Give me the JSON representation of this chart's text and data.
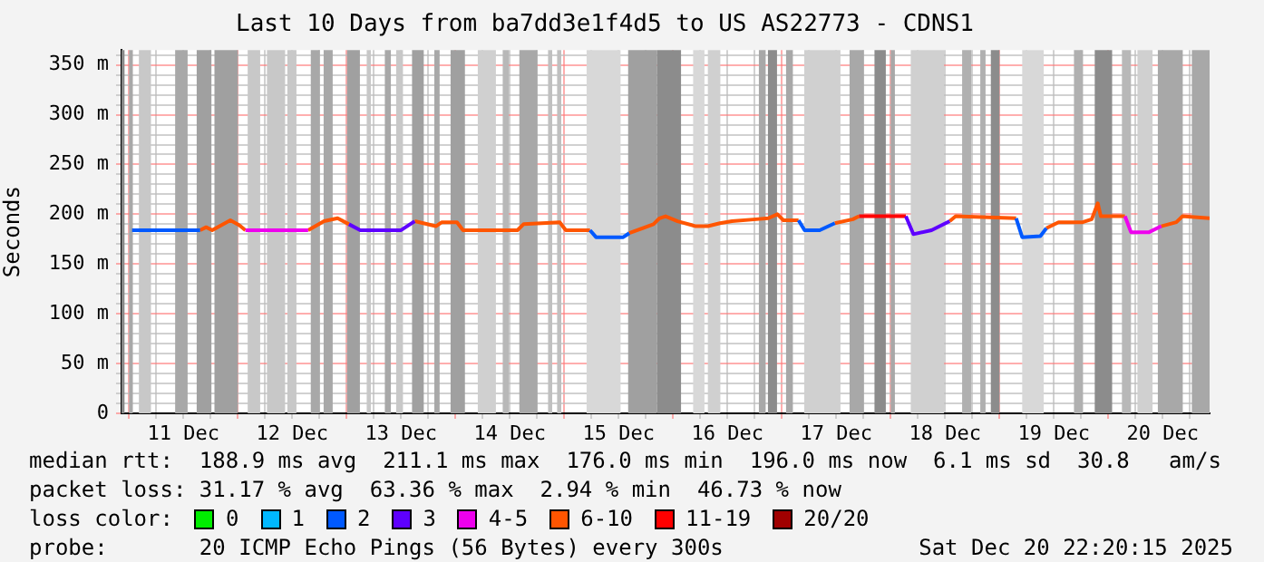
{
  "chart_data": {
    "type": "line",
    "title": "Last 10 Days from ba7dd3e1f4d5 to US AS22773 - CDNS1",
    "ylabel": "Seconds",
    "x": [
      "2025-12-11T00:40",
      "2025-12-11T05:00",
      "2025-12-11T10:00",
      "2025-12-11T15:40",
      "2025-12-11T17:00",
      "2025-12-11T18:20",
      "2025-12-11T20:20",
      "2025-12-11T22:20",
      "2025-12-12T00:20",
      "2025-12-12T01:40",
      "2025-12-12T02:30",
      "2025-12-12T14:30",
      "2025-12-12T15:30",
      "2025-12-12T19:00",
      "2025-12-12T22:00",
      "2025-12-13T00:30",
      "2025-12-13T03:00",
      "2025-12-13T12:00",
      "2025-12-13T15:00",
      "2025-12-13T19:40",
      "2025-12-13T21:00",
      "2025-12-14T00:20",
      "2025-12-14T01:40",
      "2025-12-14T13:40",
      "2025-12-14T15:00",
      "2025-12-14T23:00",
      "2025-12-15T00:20",
      "2025-12-15T05:40",
      "2025-12-15T07:00",
      "2025-12-15T13:00",
      "2025-12-15T14:20",
      "2025-12-15T19:40",
      "2025-12-15T21:00",
      "2025-12-15T22:20",
      "2025-12-16T01:00",
      "2025-12-16T05:00",
      "2025-12-16T07:40",
      "2025-12-16T10:20",
      "2025-12-16T13:00",
      "2025-12-16T18:20",
      "2025-12-16T21:00",
      "2025-12-16T23:00",
      "2025-12-17T00:20",
      "2025-12-17T03:40",
      "2025-12-17T05:00",
      "2025-12-17T08:20",
      "2025-12-17T11:40",
      "2025-12-17T15:40",
      "2025-12-17T17:00",
      "2025-12-17T20:00",
      "2025-12-18T02:30",
      "2025-12-18T03:20",
      "2025-12-18T05:00",
      "2025-12-18T09:00",
      "2025-12-18T13:00",
      "2025-12-18T14:20",
      "2025-12-19T03:40",
      "2025-12-19T05:00",
      "2025-12-19T09:00",
      "2025-12-19T10:20",
      "2025-12-19T13:00",
      "2025-12-19T18:20",
      "2025-12-19T20:20",
      "2025-12-19T21:40",
      "2025-12-19T22:20",
      "2025-12-20T03:40",
      "2025-12-20T05:00",
      "2025-12-20T09:00",
      "2025-12-20T11:40",
      "2025-12-20T15:00",
      "2025-12-20T16:20",
      "2025-12-20T22:20"
    ],
    "series": [
      {
        "name": "0",
        "color": "#00ee00",
        "values": [
          null,
          null,
          null,
          null,
          null,
          null,
          null,
          null,
          null,
          null,
          null,
          null,
          null,
          null,
          null,
          null,
          null,
          null,
          null,
          null,
          null,
          null,
          null,
          null,
          null,
          null,
          null,
          null,
          null,
          null,
          null,
          null,
          null,
          null,
          null,
          null,
          null,
          null,
          null,
          null,
          null,
          null,
          null,
          null,
          null,
          null,
          null,
          null,
          null,
          null,
          null,
          null,
          null,
          null,
          null,
          null,
          null,
          null,
          null,
          null,
          null,
          null,
          null,
          null,
          null,
          null,
          null,
          null,
          null,
          null,
          null,
          null
        ]
      },
      {
        "name": "1",
        "color": "#00b8ff",
        "values": [
          null,
          null,
          null,
          null,
          null,
          null,
          null,
          null,
          null,
          null,
          null,
          null,
          null,
          null,
          null,
          null,
          null,
          null,
          null,
          null,
          null,
          null,
          null,
          null,
          null,
          null,
          null,
          null,
          null,
          null,
          null,
          null,
          null,
          null,
          null,
          null,
          null,
          null,
          null,
          null,
          null,
          null,
          null,
          null,
          null,
          null,
          null,
          null,
          null,
          null,
          null,
          null,
          null,
          null,
          null,
          null,
          null,
          null,
          null,
          null,
          null,
          null,
          null,
          null,
          null,
          null,
          null,
          null,
          null,
          null,
          null,
          null
        ]
      },
      {
        "name": "2",
        "color": "#0059ff",
        "values": [
          184,
          184,
          184,
          184,
          null,
          null,
          null,
          null,
          null,
          null,
          null,
          null,
          null,
          null,
          null,
          null,
          null,
          null,
          null,
          null,
          null,
          null,
          null,
          null,
          null,
          null,
          null,
          184,
          177,
          177,
          181,
          null,
          null,
          null,
          null,
          null,
          null,
          null,
          null,
          null,
          null,
          null,
          null,
          194,
          184,
          184,
          191,
          null,
          null,
          null,
          null,
          null,
          null,
          null,
          null,
          null,
          196,
          177,
          178,
          186,
          null,
          null,
          null,
          null,
          null,
          null,
          null,
          null,
          null,
          null,
          null,
          null
        ]
      },
      {
        "name": "3",
        "color": "#5e00ff",
        "values": [
          null,
          null,
          null,
          null,
          null,
          null,
          null,
          null,
          null,
          null,
          null,
          null,
          null,
          null,
          null,
          190,
          184,
          184,
          193,
          null,
          null,
          null,
          null,
          null,
          null,
          null,
          null,
          null,
          null,
          null,
          null,
          null,
          null,
          null,
          null,
          null,
          null,
          null,
          null,
          null,
          null,
          null,
          null,
          null,
          null,
          null,
          null,
          null,
          null,
          null,
          null,
          198,
          180,
          184,
          193,
          null,
          null,
          null,
          null,
          null,
          null,
          null,
          null,
          null,
          null,
          null,
          null,
          null,
          null,
          null,
          null,
          null
        ]
      },
      {
        "name": "4-5",
        "color": "#ee00ee",
        "values": [
          null,
          null,
          null,
          null,
          null,
          null,
          null,
          null,
          null,
          184,
          184,
          184,
          184,
          null,
          null,
          null,
          null,
          null,
          null,
          null,
          null,
          null,
          null,
          null,
          null,
          null,
          null,
          null,
          null,
          null,
          null,
          null,
          null,
          null,
          null,
          null,
          null,
          null,
          null,
          null,
          null,
          null,
          null,
          null,
          null,
          null,
          null,
          null,
          null,
          null,
          null,
          null,
          null,
          null,
          null,
          null,
          null,
          null,
          null,
          null,
          null,
          null,
          null,
          null,
          null,
          198,
          182,
          182,
          188,
          null,
          null,
          null
        ]
      },
      {
        "name": "6-10",
        "color": "#ff5500",
        "values": [
          null,
          null,
          null,
          184,
          187,
          184,
          189,
          194,
          189,
          184,
          null,
          null,
          184,
          193,
          196,
          190,
          null,
          null,
          193,
          188,
          192,
          192,
          184,
          184,
          190,
          192,
          184,
          184,
          null,
          null,
          181,
          190,
          196,
          198,
          193,
          188,
          188,
          191,
          193,
          195,
          196,
          200,
          194,
          194,
          null,
          null,
          191,
          195,
          198,
          null,
          null,
          null,
          null,
          null,
          193,
          198,
          196,
          null,
          null,
          186,
          192,
          192,
          195,
          211,
          198,
          198,
          null,
          null,
          188,
          192,
          198,
          196
        ]
      },
      {
        "name": "11-19",
        "color": "#ff0000",
        "values": [
          null,
          null,
          null,
          null,
          null,
          null,
          null,
          null,
          null,
          null,
          null,
          null,
          null,
          null,
          null,
          null,
          null,
          null,
          null,
          null,
          null,
          null,
          null,
          null,
          null,
          null,
          null,
          null,
          null,
          null,
          null,
          null,
          null,
          null,
          null,
          null,
          null,
          null,
          null,
          null,
          null,
          null,
          null,
          null,
          null,
          null,
          null,
          null,
          198,
          198,
          198,
          198,
          null,
          null,
          null,
          null,
          null,
          null,
          null,
          null,
          null,
          null,
          null,
          null,
          null,
          null,
          null,
          null,
          null,
          null,
          null,
          null
        ]
      },
      {
        "name": "20/20",
        "color": "#a00000",
        "values": [
          null,
          null,
          null,
          null,
          null,
          null,
          null,
          null,
          null,
          null,
          null,
          null,
          null,
          null,
          null,
          null,
          null,
          null,
          null,
          null,
          null,
          null,
          null,
          null,
          null,
          null,
          null,
          null,
          null,
          null,
          null,
          null,
          null,
          null,
          null,
          null,
          null,
          null,
          null,
          null,
          null,
          null,
          null,
          null,
          null,
          null,
          null,
          null,
          null,
          null,
          null,
          null,
          null,
          null,
          null,
          null,
          null,
          null,
          null,
          null,
          null,
          null,
          null,
          null,
          null,
          null,
          null,
          null,
          null,
          null,
          null,
          null
        ]
      }
    ],
    "xlim": [
      "2025-12-10T22:20",
      "2025-12-20T22:20"
    ],
    "xticks": [
      {
        "value": "2025-12-11T00:00",
        "label": null
      },
      {
        "value": "2025-12-11T06:00",
        "label": null
      },
      {
        "value": "2025-12-11T12:00",
        "label": "11 Dec"
      },
      {
        "value": "2025-12-11T18:00",
        "label": null
      },
      {
        "value": "2025-12-12T00:00",
        "label": null
      },
      {
        "value": "2025-12-12T06:00",
        "label": null
      },
      {
        "value": "2025-12-12T12:00",
        "label": "12 Dec"
      },
      {
        "value": "2025-12-12T18:00",
        "label": null
      },
      {
        "value": "2025-12-13T00:00",
        "label": null
      },
      {
        "value": "2025-12-13T06:00",
        "label": null
      },
      {
        "value": "2025-12-13T12:00",
        "label": "13 Dec"
      },
      {
        "value": "2025-12-13T18:00",
        "label": null
      },
      {
        "value": "2025-12-14T00:00",
        "label": null
      },
      {
        "value": "2025-12-14T06:00",
        "label": null
      },
      {
        "value": "2025-12-14T12:00",
        "label": "14 Dec"
      },
      {
        "value": "2025-12-14T18:00",
        "label": null
      },
      {
        "value": "2025-12-15T00:00",
        "label": null
      },
      {
        "value": "2025-12-15T06:00",
        "label": null
      },
      {
        "value": "2025-12-15T12:00",
        "label": "15 Dec"
      },
      {
        "value": "2025-12-15T18:00",
        "label": null
      },
      {
        "value": "2025-12-16T00:00",
        "label": null
      },
      {
        "value": "2025-12-16T06:00",
        "label": null
      },
      {
        "value": "2025-12-16T12:00",
        "label": "16 Dec"
      },
      {
        "value": "2025-12-16T18:00",
        "label": null
      },
      {
        "value": "2025-12-17T00:00",
        "label": null
      },
      {
        "value": "2025-12-17T06:00",
        "label": null
      },
      {
        "value": "2025-12-17T12:00",
        "label": "17 Dec"
      },
      {
        "value": "2025-12-17T18:00",
        "label": null
      },
      {
        "value": "2025-12-18T00:00",
        "label": null
      },
      {
        "value": "2025-12-18T06:00",
        "label": null
      },
      {
        "value": "2025-12-18T12:00",
        "label": "18 Dec"
      },
      {
        "value": "2025-12-18T18:00",
        "label": null
      },
      {
        "value": "2025-12-19T00:00",
        "label": null
      },
      {
        "value": "2025-12-19T06:00",
        "label": null
      },
      {
        "value": "2025-12-19T12:00",
        "label": "19 Dec"
      },
      {
        "value": "2025-12-19T18:00",
        "label": null
      },
      {
        "value": "2025-12-20T00:00",
        "label": null
      },
      {
        "value": "2025-12-20T06:00",
        "label": null
      },
      {
        "value": "2025-12-20T12:00",
        "label": "20 Dec"
      },
      {
        "value": "2025-12-20T18:00",
        "label": null
      }
    ],
    "ylim": [
      0,
      365
    ],
    "yticks": [
      0,
      {
        "value": 10,
        "label": null
      },
      {
        "value": 20,
        "label": null
      },
      {
        "value": 30,
        "label": null
      },
      {
        "value": 40,
        "label": null
      },
      {
        "value": 50,
        "label": "50 m"
      },
      {
        "value": 60,
        "label": null
      },
      {
        "value": 70,
        "label": null
      },
      {
        "value": 80,
        "label": null
      },
      {
        "value": 90,
        "label": null
      },
      {
        "value": 100,
        "label": "100 m"
      },
      {
        "value": 110,
        "label": null
      },
      {
        "value": 120,
        "label": null
      },
      {
        "value": 130,
        "label": null
      },
      {
        "value": 140,
        "label": null
      },
      {
        "value": 150,
        "label": "150 m"
      },
      {
        "value": 160,
        "label": null
      },
      {
        "value": 170,
        "label": null
      },
      {
        "value": 180,
        "label": null
      },
      {
        "value": 190,
        "label": null
      },
      {
        "value": 200,
        "label": "200 m"
      },
      {
        "value": 210,
        "label": null
      },
      {
        "value": 220,
        "label": null
      },
      {
        "value": 230,
        "label": null
      },
      {
        "value": 240,
        "label": null
      },
      {
        "value": 250,
        "label": "250 m"
      },
      {
        "value": 260,
        "label": null
      },
      {
        "value": 270,
        "label": null
      },
      {
        "value": 280,
        "label": null
      },
      {
        "value": 290,
        "label": null
      },
      {
        "value": 300,
        "label": "300 m"
      },
      {
        "value": 310,
        "label": null
      },
      {
        "value": 320,
        "label": null
      },
      {
        "value": 330,
        "label": null
      },
      {
        "value": 340,
        "label": null
      },
      {
        "value": 350,
        "label": "350 m"
      },
      {
        "value": 360,
        "label": null
      }
    ],
    "bands": [
      {
        "axis": "x",
        "from": "2025-12-10T22:20",
        "to": "2025-12-10T23:00",
        "color": "#888888"
      },
      {
        "axis": "x",
        "from": "2025-12-11T00:00",
        "to": "2025-12-11T00:50",
        "color": "#a8a8a8"
      },
      {
        "axis": "x",
        "from": "2025-12-11T02:10",
        "to": "2025-12-11T04:50",
        "color": "#c8c8c8"
      },
      {
        "axis": "x",
        "from": "2025-12-11T10:10",
        "to": "2025-12-11T12:55",
        "color": "#a8a8a8"
      },
      {
        "axis": "x",
        "from": "2025-12-11T14:55",
        "to": "2025-12-11T18:10",
        "color": "#a0a0a0"
      },
      {
        "axis": "x",
        "from": "2025-12-11T18:50",
        "to": "2025-12-12T00:00",
        "color": "#a0a0a0"
      },
      {
        "axis": "x",
        "from": "2025-12-12T02:10",
        "to": "2025-12-12T04:55",
        "color": "#c8c8c8"
      },
      {
        "axis": "x",
        "from": "2025-12-12T06:25",
        "to": "2025-12-12T10:25",
        "color": "#c8c8c8"
      },
      {
        "axis": "x",
        "from": "2025-12-12T10:55",
        "to": "2025-12-12T12:55",
        "color": "#c8c8c8"
      },
      {
        "axis": "x",
        "from": "2025-12-12T16:05",
        "to": "2025-12-12T18:05",
        "color": "#a8a8a8"
      },
      {
        "axis": "x",
        "from": "2025-12-12T18:55",
        "to": "2025-12-12T20:55",
        "color": "#a8a8a8"
      },
      {
        "axis": "x",
        "from": "2025-12-13T00:05",
        "to": "2025-12-13T02:55",
        "color": "#a0a0a0"
      },
      {
        "axis": "x",
        "from": "2025-12-13T04:25",
        "to": "2025-12-13T05:20",
        "color": "#c8c8c8"
      },
      {
        "axis": "x",
        "from": "2025-12-13T08:25",
        "to": "2025-12-13T09:45",
        "color": "#a8a8a8"
      },
      {
        "axis": "x",
        "from": "2025-12-13T10:55",
        "to": "2025-12-13T12:25",
        "color": "#c8c8c8"
      },
      {
        "axis": "x",
        "from": "2025-12-13T14:25",
        "to": "2025-12-13T17:00",
        "color": "#a0a0a0"
      },
      {
        "axis": "x",
        "from": "2025-12-13T19:20",
        "to": "2025-12-13T20:30",
        "color": "#a8a8a8"
      },
      {
        "axis": "x",
        "from": "2025-12-13T22:55",
        "to": "2025-12-14T02:05",
        "color": "#a0a0a0"
      },
      {
        "axis": "x",
        "from": "2025-12-14T04:55",
        "to": "2025-12-14T08:55",
        "color": "#d0d0d0"
      },
      {
        "axis": "x",
        "from": "2025-12-14T10:25",
        "to": "2025-12-14T11:45",
        "color": "#b8b8b8"
      },
      {
        "axis": "x",
        "from": "2025-12-14T14:05",
        "to": "2025-12-14T18:05",
        "color": "#a8a8a8"
      },
      {
        "axis": "x",
        "from": "2025-12-14T20:25",
        "to": "2025-12-14T21:20",
        "color": "#c0c0c0"
      },
      {
        "axis": "x",
        "from": "2025-12-14T22:25",
        "to": "2025-12-14T23:20",
        "color": "#c0c0c0"
      },
      {
        "axis": "x",
        "from": "2025-12-15T04:55",
        "to": "2025-12-15T12:25",
        "color": "#d8d8d8"
      },
      {
        "axis": "x",
        "from": "2025-12-15T14:05",
        "to": "2025-12-15T20:25",
        "color": "#a0a0a0"
      },
      {
        "axis": "x",
        "from": "2025-12-15T20:25",
        "to": "2025-12-16T01:45",
        "color": "#8c8c8c"
      },
      {
        "axis": "x",
        "from": "2025-12-16T04:25",
        "to": "2025-12-16T06:55",
        "color": "#d8d8d8"
      },
      {
        "axis": "x",
        "from": "2025-12-16T07:40",
        "to": "2025-12-16T10:25",
        "color": "#d0d0d0"
      },
      {
        "axis": "x",
        "from": "2025-12-16T18:55",
        "to": "2025-12-16T20:25",
        "color": "#a8a8a8"
      },
      {
        "axis": "x",
        "from": "2025-12-16T20:55",
        "to": "2025-12-16T22:55",
        "color": "#8c8c8c"
      },
      {
        "axis": "x",
        "from": "2025-12-17T00:55",
        "to": "2025-12-17T02:25",
        "color": "#a8a8a8"
      },
      {
        "axis": "x",
        "from": "2025-12-17T04:55",
        "to": "2025-12-17T12:55",
        "color": "#d0d0d0"
      },
      {
        "axis": "x",
        "from": "2025-12-17T14:55",
        "to": "2025-12-17T18:05",
        "color": "#a8a8a8"
      },
      {
        "axis": "x",
        "from": "2025-12-17T20:25",
        "to": "2025-12-17T22:55",
        "color": "#8c8c8c"
      },
      {
        "axis": "x",
        "from": "2025-12-18T00:00",
        "to": "2025-12-18T00:55",
        "color": "#a8a8a8"
      },
      {
        "axis": "x",
        "from": "2025-12-18T04:25",
        "to": "2025-12-18T11:45",
        "color": "#d0d0d0"
      },
      {
        "axis": "x",
        "from": "2025-12-18T15:45",
        "to": "2025-12-18T17:45",
        "color": "#b0b0b0"
      },
      {
        "axis": "x",
        "from": "2025-12-18T19:45",
        "to": "2025-12-18T20:55",
        "color": "#b0b0b0"
      },
      {
        "axis": "x",
        "from": "2025-12-18T22:05",
        "to": "2025-12-19T00:00",
        "color": "#8c8c8c"
      },
      {
        "axis": "x",
        "from": "2025-12-19T05:00",
        "to": "2025-12-19T09:45",
        "color": "#d8d8d8"
      },
      {
        "axis": "x",
        "from": "2025-12-19T16:25",
        "to": "2025-12-19T18:25",
        "color": "#b0b0b0"
      },
      {
        "axis": "x",
        "from": "2025-12-19T21:00",
        "to": "2025-12-20T00:50",
        "color": "#8c8c8c"
      },
      {
        "axis": "x",
        "from": "2025-12-20T03:00",
        "to": "2025-12-20T05:00",
        "color": "#b8b8b8"
      },
      {
        "axis": "x",
        "from": "2025-12-20T06:25",
        "to": "2025-12-20T09:45",
        "color": "#d0d0d0"
      },
      {
        "axis": "x",
        "from": "2025-12-20T10:55",
        "to": "2025-12-20T16:25",
        "color": "#a8a8a8"
      },
      {
        "axis": "x",
        "from": "2025-12-20T18:25",
        "to": "2025-12-20T22:20",
        "color": "#a8a8a8"
      }
    ],
    "grid": true,
    "marker": "none",
    "legend": "bottom",
    "legend_title": "loss color:",
    "annotations": [
      "median rtt:  188.9 ms avg  211.1 ms max  176.0 ms min  196.0 ms now  6.1 ms sd  30.8   am/s",
      "packet loss: 31.17 % avg  63.36 % max  2.94 % min  46.73 % now",
      "probe:       20 ICMP Echo Pings (56 Bytes) every 300s",
      "Sat Dec 20 22:20:15 2025"
    ]
  }
}
